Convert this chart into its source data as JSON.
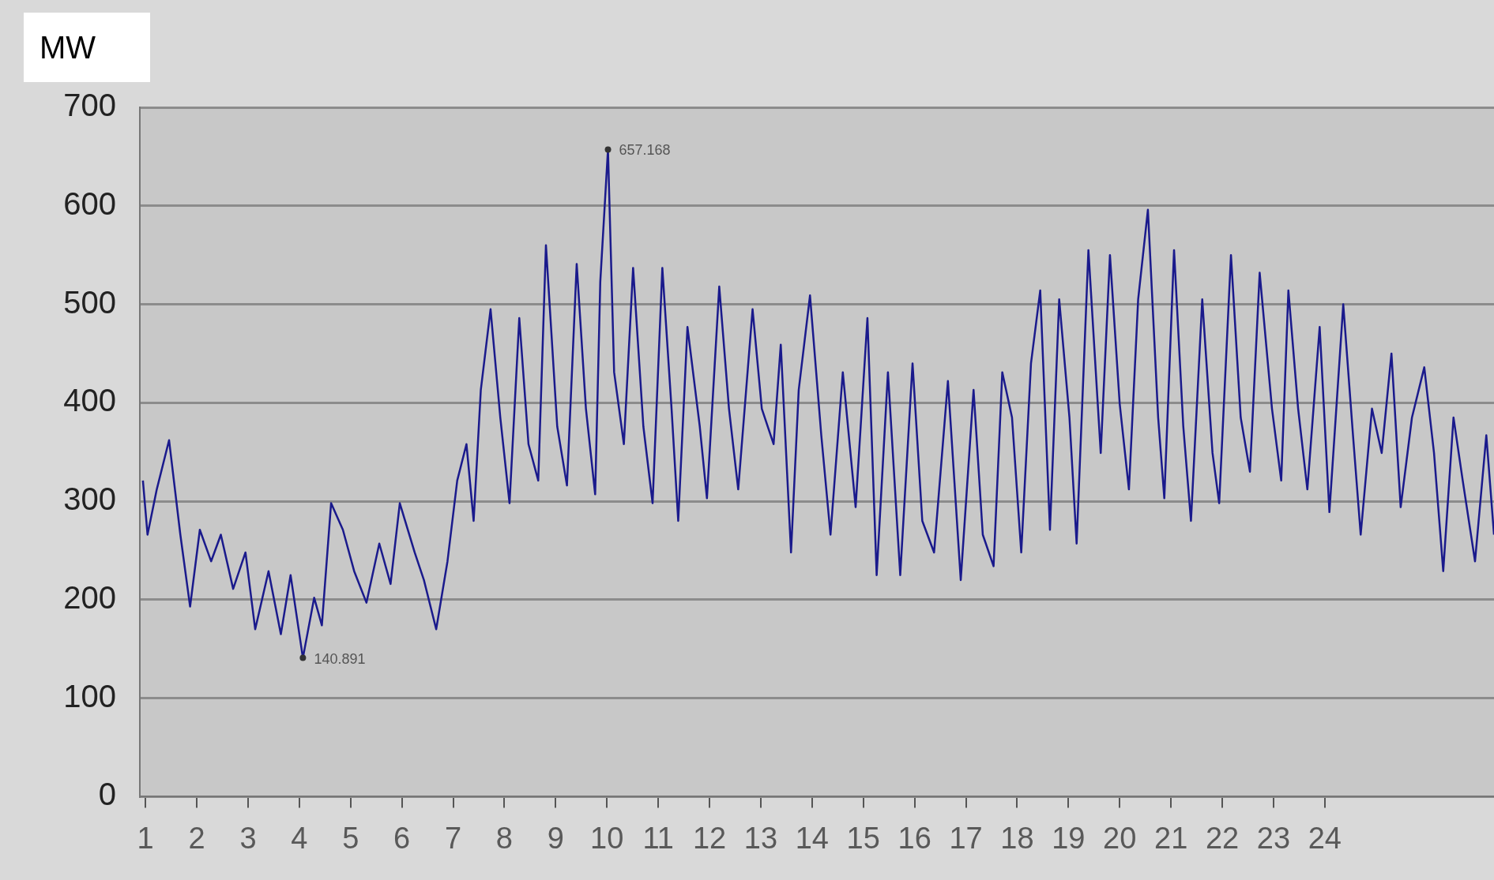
{
  "chart_data": {
    "type": "line",
    "ylabel": "MW",
    "x": [
      0.95,
      1.04,
      1.22,
      1.46,
      1.68,
      1.87,
      2.06,
      2.28,
      2.47,
      2.71,
      2.95,
      3.14,
      3.4,
      3.64,
      3.83,
      4.07,
      4.29,
      4.44,
      4.62,
      4.85,
      5.07,
      5.31,
      5.56,
      5.78,
      5.96,
      6.25,
      6.43,
      6.67,
      6.89,
      7.08,
      7.26,
      7.4,
      7.54,
      7.73,
      7.92,
      8.1,
      8.29,
      8.47,
      8.66,
      8.81,
      9.03,
      9.22,
      9.41,
      9.59,
      9.77,
      9.87,
      10.02,
      10.14,
      10.33,
      10.51,
      10.71,
      10.89,
      11.08,
      11.26,
      11.39,
      11.57,
      11.81,
      11.95,
      12.19,
      12.38,
      12.56,
      12.84,
      13.02,
      13.25,
      13.39,
      13.59,
      13.74,
      13.96,
      14.18,
      14.36,
      14.6,
      14.85,
      15.08,
      15.26,
      15.48,
      15.72,
      15.96,
      16.15,
      16.38,
      16.65,
      16.9,
      17.15,
      17.33,
      17.54,
      17.71,
      17.9,
      18.08,
      18.27,
      18.45,
      18.64,
      18.82,
      19.02,
      19.16,
      19.39,
      19.63,
      19.81,
      20.0,
      20.18,
      20.36,
      20.55,
      20.75,
      20.87,
      21.06,
      21.24,
      21.39,
      21.61,
      21.81,
      21.94,
      22.17,
      22.36,
      22.54,
      22.73,
      22.97,
      23.15,
      23.29,
      23.48,
      23.66,
      23.9,
      24.09,
      24.36,
      24.55,
      24.7,
      24.92,
      25.11,
      25.3,
      25.48,
      25.7,
      25.94,
      26.13,
      26.31,
      26.51,
      26.69,
      26.93,
      27.15,
      27.3
    ],
    "series": [
      {
        "color": "#1a1a8c",
        "values": [
          321,
          266,
          312,
          362,
          266,
          193,
          271,
          239,
          266,
          211,
          248,
          170,
          229,
          165,
          225,
          140.891,
          202,
          174,
          298,
          271,
          229,
          197,
          257,
          216,
          298,
          248,
          220,
          170,
          239,
          321,
          358,
          280,
          413,
          495,
          385,
          298,
          486,
          358,
          321,
          560,
          376,
          316,
          541,
          394,
          307,
          523,
          657.168,
          431,
          358,
          537,
          376,
          298,
          537,
          394,
          280,
          477,
          376,
          303,
          518,
          394,
          312,
          495,
          394,
          358,
          459,
          248,
          413,
          509,
          367,
          266,
          431,
          294,
          486,
          225,
          431,
          225,
          440,
          280,
          248,
          422,
          220,
          413,
          266,
          234,
          431,
          385,
          248,
          440,
          514,
          271,
          505,
          385,
          257,
          555,
          349,
          550,
          399,
          312,
          505,
          596,
          385,
          303,
          555,
          376,
          280,
          505,
          349,
          298,
          550,
          385,
          330,
          532,
          394,
          321,
          514,
          394,
          312,
          477,
          289,
          500,
          367,
          266,
          394,
          349,
          450,
          294,
          385,
          436,
          349,
          229,
          385,
          321,
          239,
          367,
          266
        ]
      }
    ],
    "xlim": [
      0.89,
      27.3
    ],
    "xticks": [
      1,
      2,
      3,
      4,
      5,
      6,
      7,
      8,
      9,
      10,
      11,
      12,
      13,
      14,
      15,
      16,
      17,
      18,
      19,
      20,
      21,
      22,
      23,
      24
    ],
    "ylim": [
      0,
      700
    ],
    "yticks": [
      0,
      100,
      200,
      300,
      400,
      500,
      600,
      700
    ],
    "grid": "y",
    "marker": "none",
    "line_style": "solid",
    "annotations": [
      {
        "text": "657.168",
        "x": 10.02,
        "y": 657.168
      },
      {
        "text": "140.891",
        "x": 4.07,
        "y": 140.891
      }
    ]
  }
}
